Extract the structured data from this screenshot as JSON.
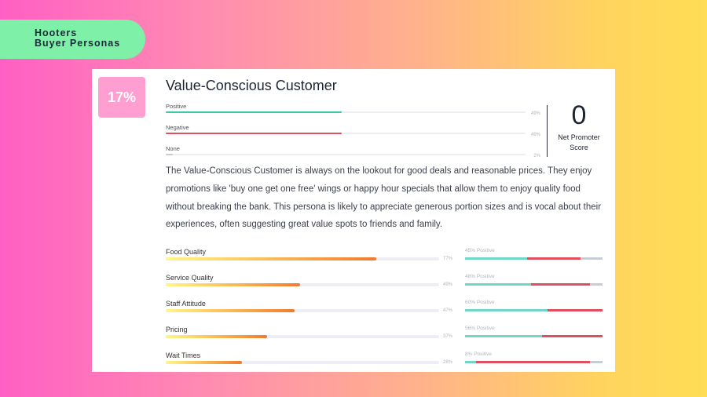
{
  "header": {
    "line1": "Hooters",
    "line2": "Buyer Personas"
  },
  "persona": {
    "percentage": "17%",
    "title": "Value-Conscious Customer",
    "description": "The Value-Conscious Customer is always on the lookout for good deals and reasonable prices. They enjoy promotions like 'buy one get one free' wings or happy hour specials that allow them to enjoy quality food without breaking the bank. This persona is likely to appreciate generous portion sizes and is vocal about their experiences, often suggesting great value spots to friends and family."
  },
  "sentiment": [
    {
      "label": "Positive",
      "value": "49%",
      "fraction": 0.49,
      "color": "#3cc9a3"
    },
    {
      "label": "Negative",
      "value": "49%",
      "fraction": 0.49,
      "color": "#e04f5f"
    },
    {
      "label": "None",
      "value": "2%",
      "fraction": 0.02,
      "color": "#c8ccd4"
    }
  ],
  "nps": {
    "score": "0",
    "label_line1": "Net Promoter",
    "label_line2": "Score"
  },
  "metrics": [
    {
      "label": "Food Quality",
      "value": "77%",
      "fraction": 0.77,
      "positive_label": "45% Positive",
      "split": [
        0.45,
        0.39,
        0.16
      ]
    },
    {
      "label": "Service Quality",
      "value": "49%",
      "fraction": 0.49,
      "positive_label": "48% Positive",
      "split": [
        0.48,
        0.43,
        0.09
      ]
    },
    {
      "label": "Staff Attitude",
      "value": "47%",
      "fraction": 0.47,
      "positive_label": "60% Positive",
      "split": [
        0.6,
        0.4,
        0.0
      ]
    },
    {
      "label": "Pricing",
      "value": "37%",
      "fraction": 0.37,
      "positive_label": "56% Positive",
      "split": [
        0.56,
        0.44,
        0.0
      ]
    },
    {
      "label": "Wait Times",
      "value": "28%",
      "fraction": 0.28,
      "positive_label": "8% Positive",
      "split": [
        0.08,
        0.83,
        0.09
      ]
    }
  ],
  "colors": {
    "positive": "#6fd6c8",
    "negative": "#e04f5f",
    "neutral": "#c8ccd4"
  }
}
